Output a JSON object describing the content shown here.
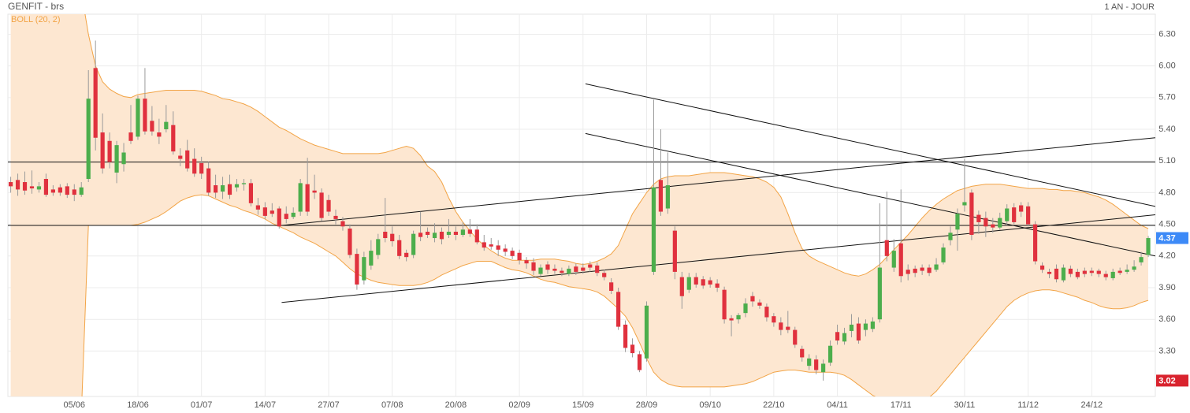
{
  "chart_data": {
    "type": "candlestick",
    "title": "GENFIT - brs",
    "indicator_label": "BOLL (20, 2)",
    "period_label": "1 AN - JOUR",
    "categories": [
      null,
      null,
      null,
      null,
      null,
      null,
      null,
      null,
      null,
      "05/06",
      null,
      null,
      null,
      null,
      null,
      null,
      null,
      null,
      "18/06",
      null,
      null,
      null,
      null,
      null,
      null,
      null,
      null,
      "01/07",
      null,
      null,
      null,
      null,
      null,
      null,
      null,
      null,
      "14/07",
      null,
      null,
      null,
      null,
      null,
      null,
      null,
      null,
      "27/07",
      null,
      null,
      null,
      null,
      null,
      null,
      null,
      null,
      "07/08",
      null,
      null,
      null,
      null,
      null,
      null,
      null,
      null,
      "20/08",
      null,
      null,
      null,
      null,
      null,
      null,
      null,
      null,
      "02/09",
      null,
      null,
      null,
      null,
      null,
      null,
      null,
      null,
      "15/09",
      null,
      null,
      null,
      null,
      null,
      null,
      null,
      null,
      "28/09",
      null,
      null,
      null,
      null,
      null,
      null,
      null,
      null,
      "09/10",
      null,
      null,
      null,
      null,
      null,
      null,
      null,
      null,
      "22/10",
      null,
      null,
      null,
      null,
      null,
      null,
      null,
      null,
      "04/11",
      null,
      null,
      null,
      null,
      null,
      null,
      null,
      null,
      "17/11",
      null,
      null,
      null,
      null,
      null,
      null,
      null,
      null,
      "30/11",
      null,
      null,
      null,
      null,
      null,
      null,
      null,
      null,
      "11/12",
      null,
      null,
      null,
      null,
      null,
      null,
      null,
      null,
      "24/12",
      null,
      null,
      null,
      null,
      null,
      null,
      null,
      null
    ],
    "xlim": [
      -0.4,
      162
    ],
    "ylim": [
      2.87,
      6.49
    ],
    "yticks": [
      {
        "value": 3.3,
        "label": "3.30"
      },
      {
        "value": 3.6,
        "label": "3.60"
      },
      {
        "value": 3.9,
        "label": "3.90"
      },
      {
        "value": 4.2,
        "label": "4.20"
      },
      {
        "value": 4.5,
        "label": "4.50"
      },
      {
        "value": 4.8,
        "label": "4.80"
      },
      {
        "value": 5.1,
        "label": "5.10"
      },
      {
        "value": 5.4,
        "label": "5.40"
      },
      {
        "value": 5.7,
        "label": "5.70"
      },
      {
        "value": 6.0,
        "label": "6.00"
      },
      {
        "value": 6.3,
        "label": "6.30"
      }
    ],
    "grid": true,
    "ohlc": {
      "up_color": "#4cae4c",
      "down_color": "#e0313e",
      "open": [
        4.9,
        4.92,
        4.9,
        4.86,
        4.83,
        4.93,
        4.83,
        4.85,
        4.86,
        4.83,
        4.78,
        4.93,
        5.98,
        5.37,
        5.29,
        4.99,
        5.07,
        5.37,
        5.33,
        5.69,
        5.48,
        5.37,
        5.4,
        5.44,
        5.15,
        5.2,
        5.12,
        5.08,
        5.03,
        4.87,
        4.81,
        4.88,
        4.85,
        4.88,
        4.89,
        4.68,
        4.66,
        4.63,
        4.65,
        4.6,
        4.57,
        4.62,
        4.88,
        4.82,
        4.8,
        4.73,
        4.58,
        4.53,
        4.46,
        4.22,
        3.97,
        4.11,
        4.21,
        4.43,
        4.41,
        4.35,
        4.23,
        4.21,
        4.42,
        4.43,
        4.37,
        4.43,
        4.4,
        4.43,
        4.4,
        4.45,
        4.45,
        4.33,
        4.31,
        4.3,
        4.27,
        4.25,
        4.23,
        4.16,
        4.14,
        4.03,
        4.12,
        4.08,
        4.06,
        4.03,
        4.1,
        4.09,
        4.12,
        4.11,
        4.04,
        3.95,
        3.86,
        3.55,
        3.36,
        3.27,
        3.23,
        4.05,
        4.92,
        4.65,
        4.44,
        4.0,
        3.88,
        4.0,
        3.98,
        3.97,
        3.94,
        3.88,
        3.61,
        3.6,
        3.66,
        3.82,
        3.76,
        3.72,
        3.63,
        3.57,
        3.53,
        3.5,
        3.32,
        3.16,
        3.22,
        3.1,
        3.19,
        3.48,
        3.39,
        3.49,
        3.56,
        3.5,
        3.51,
        3.6,
        4.35,
        4.09,
        4.32,
        4.07,
        4.08,
        4.09,
        4.09,
        4.07,
        4.14,
        4.35,
        4.45,
        4.68,
        4.8,
        4.59,
        4.56,
        4.5,
        4.47,
        4.53,
        4.66,
        4.68,
        4.67,
        4.5,
        4.11,
        4.05,
        4.08,
        3.97,
        4.08,
        4.05,
        4.06,
        4.06,
        4.06,
        4.03,
        3.99,
        4.06,
        4.05,
        4.07,
        4.14,
        4.21
      ],
      "high": [
        4.95,
        4.98,
        5.0,
        5.01,
        4.9,
        4.98,
        4.87,
        4.88,
        4.89,
        4.88,
        4.9,
        5.96,
        6.24,
        5.55,
        5.37,
        5.29,
        5.27,
        5.63,
        5.72,
        5.98,
        5.62,
        5.5,
        5.63,
        5.57,
        5.22,
        5.3,
        5.22,
        5.14,
        5.09,
        4.97,
        4.95,
        4.97,
        4.93,
        4.93,
        4.93,
        4.75,
        4.71,
        4.7,
        4.67,
        4.67,
        4.66,
        4.93,
        5.13,
        4.97,
        4.84,
        4.78,
        4.64,
        4.57,
        4.5,
        4.27,
        4.24,
        4.35,
        4.41,
        4.75,
        4.48,
        4.4,
        4.26,
        4.44,
        4.62,
        4.47,
        4.51,
        4.47,
        4.55,
        4.48,
        4.52,
        4.55,
        4.5,
        4.4,
        4.37,
        4.35,
        4.31,
        4.28,
        4.26,
        4.19,
        4.18,
        4.12,
        4.15,
        4.12,
        4.09,
        4.11,
        4.13,
        4.13,
        4.15,
        4.14,
        4.07,
        3.99,
        3.9,
        3.59,
        3.42,
        3.3,
        3.77,
        5.68,
        5.4,
        5.18,
        4.48,
        4.05,
        4.04,
        4.04,
        4.01,
        4.0,
        3.98,
        3.91,
        3.64,
        3.66,
        3.8,
        3.86,
        3.79,
        3.75,
        3.66,
        3.62,
        3.68,
        3.53,
        3.35,
        3.27,
        3.26,
        3.22,
        3.4,
        3.55,
        3.52,
        3.65,
        3.62,
        3.6,
        3.62,
        4.7,
        4.81,
        4.36,
        4.83,
        4.12,
        4.11,
        4.12,
        4.12,
        4.18,
        4.32,
        4.48,
        4.65,
        5.12,
        4.83,
        4.63,
        4.62,
        4.56,
        4.61,
        4.69,
        4.7,
        4.71,
        4.71,
        4.53,
        4.14,
        4.08,
        4.12,
        4.12,
        4.11,
        4.08,
        4.09,
        4.09,
        4.08,
        4.06,
        4.08,
        4.09,
        4.12,
        4.16,
        4.24,
        4.39
      ],
      "low": [
        4.8,
        4.77,
        4.78,
        4.79,
        4.8,
        4.76,
        4.77,
        4.77,
        4.75,
        4.72,
        4.76,
        4.9,
        5.2,
        4.98,
        5.03,
        4.89,
        5.0,
        5.26,
        5.3,
        5.35,
        5.34,
        5.26,
        5.37,
        5.16,
        5.05,
        5.0,
        4.95,
        4.93,
        4.77,
        4.75,
        4.74,
        4.74,
        4.81,
        4.82,
        4.67,
        4.59,
        4.55,
        4.57,
        4.46,
        4.51,
        4.55,
        4.58,
        4.58,
        4.74,
        4.53,
        4.58,
        4.5,
        4.44,
        4.18,
        3.88,
        3.93,
        4.07,
        4.17,
        4.33,
        4.29,
        4.17,
        4.15,
        4.18,
        4.34,
        4.37,
        4.33,
        4.31,
        4.37,
        4.35,
        4.38,
        4.38,
        4.31,
        4.25,
        4.26,
        4.2,
        4.2,
        4.17,
        4.12,
        4.08,
        4.02,
        4.01,
        4.03,
        4.03,
        4.01,
        4.01,
        4.02,
        4.03,
        4.05,
        4.01,
        3.97,
        3.84,
        3.5,
        3.29,
        3.24,
        3.1,
        3.2,
        4.02,
        4.58,
        4.6,
        3.98,
        3.7,
        3.85,
        3.9,
        3.89,
        3.9,
        3.86,
        3.56,
        3.44,
        3.56,
        3.62,
        3.72,
        3.7,
        3.58,
        3.53,
        3.45,
        3.47,
        3.33,
        3.2,
        3.12,
        3.08,
        3.02,
        3.16,
        3.36,
        3.36,
        3.43,
        3.37,
        3.44,
        3.48,
        3.57,
        4.15,
        4.05,
        3.95,
        3.97,
        4.0,
        4.02,
        4.01,
        4.05,
        4.12,
        4.3,
        4.25,
        4.62,
        4.35,
        4.41,
        4.38,
        4.42,
        4.45,
        4.49,
        4.5,
        4.57,
        4.48,
        4.12,
        4.04,
        3.99,
        3.95,
        3.95,
        4.0,
        3.98,
        4.0,
        4.01,
        4.0,
        3.97,
        3.97,
        4.02,
        4.03,
        4.05,
        4.11,
        4.19
      ],
      "close": [
        4.86,
        4.83,
        4.82,
        4.84,
        4.86,
        4.78,
        4.8,
        4.8,
        4.78,
        4.78,
        4.85,
        5.69,
        5.32,
        5.03,
        5.09,
        5.25,
        5.18,
        5.29,
        5.69,
        5.38,
        5.38,
        5.33,
        5.47,
        5.19,
        5.12,
        5.03,
        4.98,
        4.98,
        4.8,
        4.8,
        4.87,
        4.78,
        4.88,
        4.89,
        4.7,
        4.64,
        4.58,
        4.6,
        4.48,
        4.55,
        4.61,
        4.89,
        4.62,
        4.8,
        4.56,
        4.62,
        4.55,
        4.48,
        4.21,
        3.93,
        4.19,
        4.25,
        4.36,
        4.37,
        4.34,
        4.2,
        4.19,
        4.41,
        4.38,
        4.4,
        4.42,
        4.36,
        4.43,
        4.4,
        4.45,
        4.41,
        4.33,
        4.28,
        4.29,
        4.26,
        4.24,
        4.2,
        4.16,
        4.13,
        4.06,
        4.09,
        4.07,
        4.06,
        4.04,
        4.08,
        4.05,
        4.06,
        4.09,
        4.04,
        4.0,
        3.87,
        3.53,
        3.33,
        3.28,
        3.12,
        3.73,
        4.85,
        4.62,
        4.87,
        4.05,
        3.82,
        4.0,
        3.93,
        3.92,
        3.93,
        3.9,
        3.6,
        3.59,
        3.64,
        3.75,
        3.77,
        3.73,
        3.62,
        3.57,
        3.5,
        3.5,
        3.36,
        3.24,
        3.23,
        3.12,
        3.18,
        3.35,
        3.4,
        3.47,
        3.55,
        3.4,
        3.56,
        3.58,
        4.09,
        4.2,
        4.25,
        4.01,
        4.03,
        4.04,
        4.06,
        4.04,
        4.12,
        4.28,
        4.42,
        4.6,
        4.71,
        4.4,
        4.52,
        4.48,
        4.47,
        4.56,
        4.65,
        4.52,
        4.62,
        4.5,
        4.15,
        4.07,
        4.03,
        3.98,
        4.09,
        4.03,
        4.0,
        4.03,
        4.04,
        4.03,
        4.0,
        4.05,
        4.04,
        4.07,
        4.1,
        4.19,
        4.37
      ]
    },
    "bollinger": {
      "color": "#f2a446",
      "fill": "#fde7d1",
      "upper": [
        6.7,
        6.7,
        6.7,
        6.7,
        6.7,
        6.7,
        6.7,
        6.7,
        6.7,
        6.7,
        6.7,
        6.3,
        6.0,
        5.85,
        5.78,
        5.74,
        5.71,
        5.7,
        5.73,
        5.74,
        5.75,
        5.76,
        5.77,
        5.77,
        5.77,
        5.77,
        5.77,
        5.76,
        5.74,
        5.72,
        5.69,
        5.68,
        5.66,
        5.64,
        5.61,
        5.57,
        5.52,
        5.47,
        5.42,
        5.39,
        5.35,
        5.31,
        5.28,
        5.25,
        5.23,
        5.21,
        5.19,
        5.17,
        5.17,
        5.17,
        5.17,
        5.17,
        5.17,
        5.18,
        5.2,
        5.22,
        5.24,
        5.22,
        5.15,
        5.05,
        5.0,
        4.9,
        4.75,
        4.62,
        4.52,
        4.44,
        4.36,
        4.3,
        4.25,
        4.21,
        4.18,
        4.16,
        4.16,
        4.16,
        4.16,
        4.17,
        4.17,
        4.17,
        4.16,
        4.15,
        4.13,
        4.12,
        4.13,
        4.15,
        4.18,
        4.22,
        4.3,
        4.45,
        4.6,
        4.7,
        4.8,
        4.88,
        4.93,
        4.95,
        4.96,
        4.96,
        4.96,
        4.97,
        4.98,
        4.99,
        4.99,
        4.99,
        4.98,
        4.97,
        4.96,
        4.95,
        4.93,
        4.9,
        4.85,
        4.76,
        4.6,
        4.42,
        4.27,
        4.2,
        4.16,
        4.13,
        4.1,
        4.07,
        4.04,
        4.02,
        4.01,
        4.03,
        4.07,
        4.12,
        4.19,
        4.26,
        4.33,
        4.4,
        4.48,
        4.56,
        4.63,
        4.69,
        4.74,
        4.78,
        4.82,
        4.84,
        4.86,
        4.87,
        4.88,
        4.88,
        4.88,
        4.87,
        4.86,
        4.85,
        4.84,
        4.84,
        4.84,
        4.83,
        4.83,
        4.82,
        4.82,
        4.81,
        4.8,
        4.78,
        4.76,
        4.73,
        4.69,
        4.64,
        4.59,
        4.54,
        4.49,
        4.46
      ],
      "lower": [
        2.7,
        2.7,
        2.7,
        2.7,
        2.7,
        2.7,
        2.7,
        2.7,
        2.7,
        2.7,
        2.7,
        4.49,
        4.49,
        4.49,
        4.49,
        4.49,
        4.49,
        4.49,
        4.5,
        4.52,
        4.55,
        4.58,
        4.62,
        4.67,
        4.72,
        4.75,
        4.77,
        4.78,
        4.77,
        4.74,
        4.71,
        4.68,
        4.66,
        4.63,
        4.61,
        4.58,
        4.55,
        4.51,
        4.48,
        4.45,
        4.42,
        4.38,
        4.35,
        4.32,
        4.28,
        4.24,
        4.2,
        4.14,
        4.08,
        4.03,
        4.0,
        3.97,
        3.95,
        3.94,
        3.93,
        3.92,
        3.92,
        3.92,
        3.93,
        3.95,
        3.98,
        4.02,
        4.05,
        4.08,
        4.11,
        4.13,
        4.15,
        4.15,
        4.15,
        4.12,
        4.09,
        4.07,
        4.06,
        4.04,
        4.01,
        3.98,
        3.96,
        3.95,
        3.93,
        3.91,
        3.9,
        3.89,
        3.88,
        3.86,
        3.82,
        3.76,
        3.7,
        3.63,
        3.52,
        3.38,
        3.23,
        3.1,
        3.03,
        2.99,
        2.97,
        2.96,
        2.96,
        2.96,
        2.96,
        2.96,
        2.96,
        2.96,
        2.97,
        2.98,
        2.99,
        3.01,
        3.04,
        3.07,
        3.1,
        3.11,
        3.12,
        3.12,
        3.11,
        3.1,
        3.1,
        3.1,
        3.1,
        3.09,
        3.07,
        3.03,
        2.98,
        2.93,
        2.88,
        2.85,
        2.82,
        2.8,
        2.79,
        2.79,
        2.8,
        2.82,
        2.86,
        2.92,
        3.0,
        3.08,
        3.16,
        3.24,
        3.32,
        3.4,
        3.48,
        3.56,
        3.64,
        3.72,
        3.78,
        3.82,
        3.85,
        3.87,
        3.88,
        3.88,
        3.87,
        3.85,
        3.83,
        3.81,
        3.78,
        3.76,
        3.73,
        3.71,
        3.7,
        3.7,
        3.71,
        3.73,
        3.76,
        3.78
      ]
    },
    "trend_lines": [
      {
        "x": [
          38.35,
          162
        ],
        "y": [
          3.76,
          4.59
        ]
      },
      {
        "x": [
          38.35,
          162
        ],
        "y": [
          4.49,
          5.32
        ]
      },
      {
        "x": [
          81.35,
          162
        ],
        "y": [
          5.83,
          4.67
        ]
      },
      {
        "x": [
          81.35,
          162
        ],
        "y": [
          5.36,
          4.2
        ]
      },
      {
        "x": [
          -0.4,
          162
        ],
        "y": [
          5.09,
          5.09
        ]
      },
      {
        "x": [
          -0.4,
          162
        ],
        "y": [
          4.49,
          4.49
        ]
      }
    ],
    "price_markers": [
      {
        "value": 4.37,
        "color": "#3d8af7"
      },
      {
        "value": 3.02,
        "color": "#d9232e"
      }
    ]
  }
}
